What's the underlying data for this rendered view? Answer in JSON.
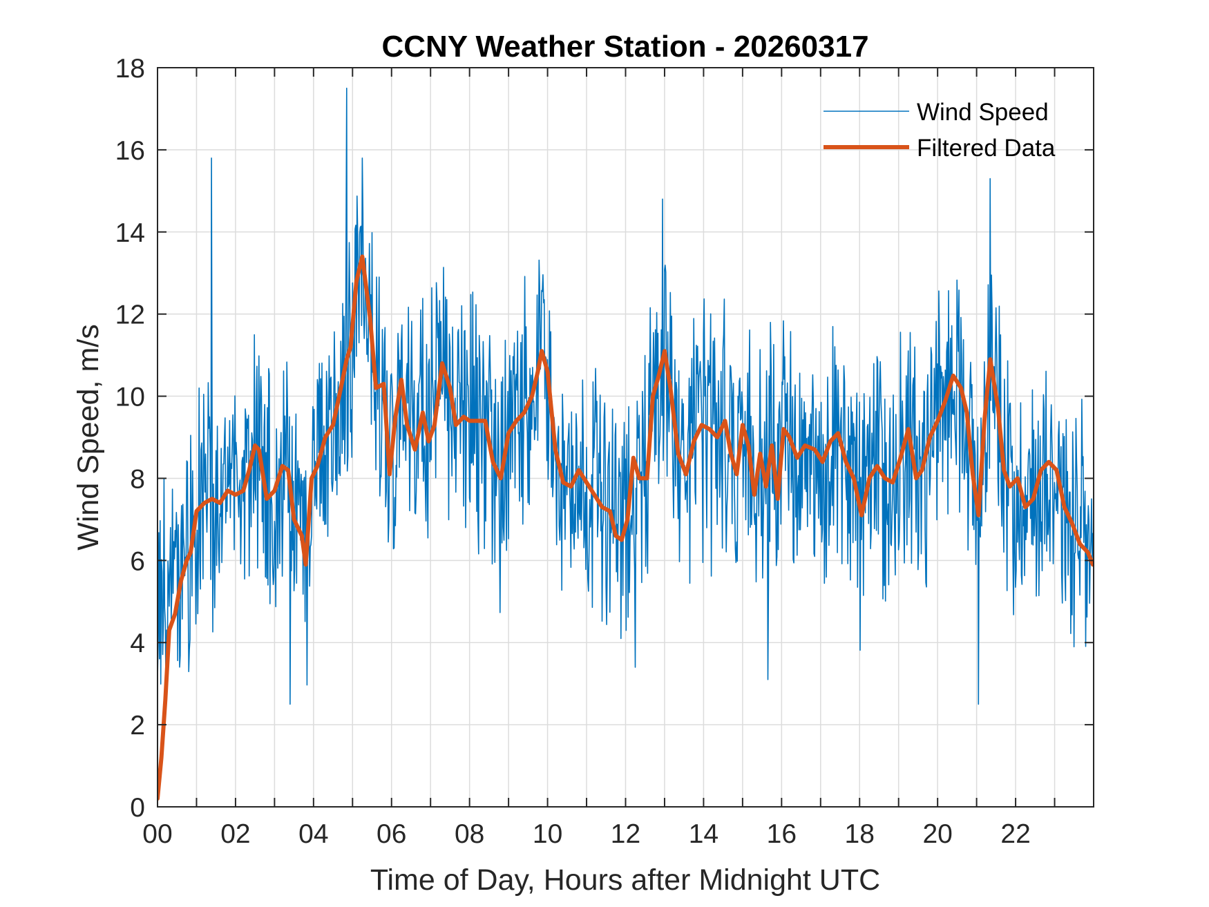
{
  "chart_data": {
    "type": "line",
    "title": "CCNY Weather Station - 20260317",
    "xlabel": "Time of Day, Hours after Midnight UTC",
    "ylabel": "Wind Speed, m/s",
    "xlim": [
      0,
      24
    ],
    "ylim": [
      0,
      18
    ],
    "xticks": [
      0,
      1,
      2,
      3,
      4,
      5,
      6,
      7,
      8,
      9,
      10,
      11,
      12,
      13,
      14,
      15,
      16,
      17,
      18,
      19,
      20,
      21,
      22,
      23
    ],
    "xtick_labels": [
      "00",
      "",
      "02",
      "",
      "04",
      "",
      "06",
      "",
      "08",
      "",
      "10",
      "",
      "12",
      "",
      "14",
      "",
      "16",
      "",
      "18",
      "",
      "20",
      "",
      "22",
      ""
    ],
    "yticks": [
      0,
      2,
      4,
      6,
      8,
      10,
      12,
      14,
      16,
      18
    ],
    "ytick_labels": [
      "0",
      "2",
      "4",
      "6",
      "8",
      "10",
      "12",
      "14",
      "16",
      "18"
    ],
    "grid": true,
    "legend": {
      "placement": "top-right",
      "entries": [
        "Wind Speed",
        "Filtered Data"
      ]
    },
    "series": [
      {
        "name": "Wind Speed",
        "color": "#0072BD",
        "style": "thin",
        "note": "raw ~1-minute samples; dense noisy trace oscillating roughly ±3-5 m/s around the filtered curve",
        "notable_values": [
          {
            "x": 1.38,
            "y": 15.8
          },
          {
            "x": 4.85,
            "y": 17.5
          },
          {
            "x": 5.25,
            "y": 15.8
          },
          {
            "x": 12.95,
            "y": 14.8
          },
          {
            "x": 21.35,
            "y": 15.3
          },
          {
            "x": 12.25,
            "y": 3.4
          },
          {
            "x": 15.65,
            "y": 3.1
          },
          {
            "x": 3.4,
            "y": 2.5
          },
          {
            "x": 21.05,
            "y": 2.5
          }
        ],
        "noise_amplitude": 2.6,
        "y_min": 2.4,
        "y_max": 17.5
      },
      {
        "name": "Filtered Data",
        "color": "#D95319",
        "style": "thick",
        "x": [
          0.0,
          0.1,
          0.2,
          0.3,
          0.45,
          0.6,
          0.75,
          0.85,
          1.0,
          1.2,
          1.4,
          1.6,
          1.8,
          2.0,
          2.2,
          2.35,
          2.5,
          2.6,
          2.8,
          3.0,
          3.2,
          3.35,
          3.5,
          3.7,
          3.8,
          3.95,
          4.1,
          4.3,
          4.5,
          4.7,
          4.85,
          4.95,
          5.1,
          5.25,
          5.45,
          5.6,
          5.8,
          5.95,
          6.1,
          6.25,
          6.4,
          6.6,
          6.8,
          6.95,
          7.1,
          7.3,
          7.5,
          7.65,
          7.85,
          8.0,
          8.2,
          8.4,
          8.6,
          8.8,
          9.0,
          9.2,
          9.4,
          9.6,
          9.75,
          9.85,
          10.0,
          10.2,
          10.4,
          10.6,
          10.8,
          11.0,
          11.2,
          11.4,
          11.6,
          11.75,
          11.9,
          12.05,
          12.2,
          12.35,
          12.55,
          12.7,
          12.85,
          13.0,
          13.15,
          13.35,
          13.55,
          13.75,
          13.95,
          14.15,
          14.35,
          14.55,
          14.7,
          14.85,
          15.0,
          15.15,
          15.3,
          15.45,
          15.6,
          15.75,
          15.9,
          16.05,
          16.2,
          16.4,
          16.6,
          16.85,
          17.05,
          17.25,
          17.45,
          17.65,
          17.85,
          18.05,
          18.25,
          18.45,
          18.65,
          18.85,
          19.05,
          19.25,
          19.45,
          19.6,
          19.8,
          20.0,
          20.2,
          20.4,
          20.6,
          20.75,
          20.9,
          21.05,
          21.2,
          21.35,
          21.55,
          21.7,
          21.85,
          22.05,
          22.25,
          22.45,
          22.65,
          22.85,
          23.05,
          23.25,
          23.45,
          23.65,
          23.85,
          23.98
        ],
        "y": [
          0.2,
          1.2,
          2.6,
          4.3,
          4.7,
          5.5,
          6.0,
          6.2,
          7.2,
          7.4,
          7.5,
          7.4,
          7.7,
          7.6,
          7.7,
          8.2,
          8.8,
          8.7,
          7.5,
          7.7,
          8.3,
          8.2,
          7.0,
          6.6,
          5.9,
          8.0,
          8.3,
          9.0,
          9.3,
          10.2,
          10.9,
          11.2,
          12.8,
          13.4,
          11.9,
          10.2,
          10.3,
          8.1,
          9.5,
          10.4,
          9.3,
          8.7,
          9.6,
          8.9,
          9.3,
          10.8,
          10.2,
          9.3,
          9.5,
          9.4,
          9.4,
          9.4,
          8.4,
          8.0,
          9.1,
          9.4,
          9.6,
          10.0,
          10.6,
          11.1,
          10.6,
          8.7,
          7.9,
          7.8,
          8.2,
          7.9,
          7.6,
          7.3,
          7.2,
          6.6,
          6.5,
          7.0,
          8.5,
          8.0,
          8.0,
          10.0,
          10.5,
          11.1,
          10.2,
          8.6,
          8.1,
          8.9,
          9.3,
          9.2,
          9.0,
          9.4,
          8.6,
          8.1,
          9.3,
          8.8,
          7.6,
          8.6,
          7.8,
          8.8,
          7.5,
          9.2,
          9.0,
          8.5,
          8.8,
          8.7,
          8.4,
          8.9,
          9.1,
          8.4,
          8.0,
          7.1,
          8.0,
          8.3,
          8.0,
          7.9,
          8.5,
          9.2,
          8.0,
          8.2,
          9.0,
          9.4,
          9.9,
          10.5,
          10.2,
          9.6,
          8.1,
          7.1,
          9.4,
          10.9,
          9.7,
          8.2,
          7.8,
          8.0,
          7.3,
          7.5,
          8.2,
          8.4,
          8.2,
          7.3,
          6.9,
          6.4,
          6.2,
          5.9
        ]
      }
    ]
  }
}
